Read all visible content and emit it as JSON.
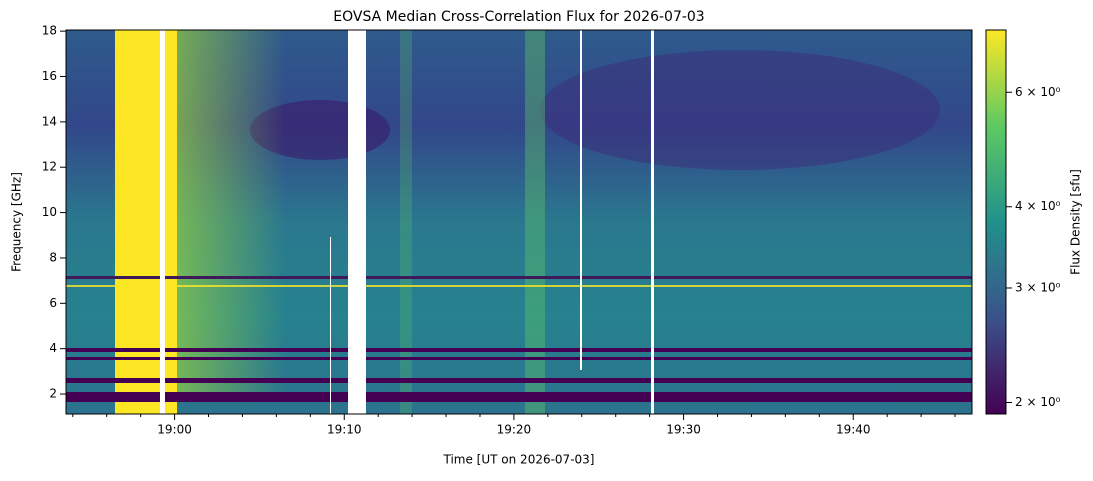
{
  "chart_data": {
    "type": "spectrogram",
    "title": "EOVSA Median Cross-Correlation Flux for 2026-07-03",
    "xlabel": "Time [UT on 2026-07-03]",
    "ylabel": "Frequency [GHz]",
    "xlim": [
      1133.6,
      1187.0
    ],
    "xticks": [
      {
        "value": 1140,
        "label": "19:00"
      },
      {
        "value": 1150,
        "label": "19:10"
      },
      {
        "value": 1160,
        "label": "19:20"
      },
      {
        "value": 1170,
        "label": "19:30"
      },
      {
        "value": 1180,
        "label": "19:40"
      }
    ],
    "xminorticks": [
      1134,
      1136,
      1138,
      1142,
      1144,
      1146,
      1148,
      1152,
      1154,
      1156,
      1158,
      1162,
      1164,
      1166,
      1168,
      1172,
      1174,
      1176,
      1178,
      1182,
      1184,
      1186
    ],
    "ylim": [
      1.12,
      18.05
    ],
    "yticks": [
      2,
      4,
      6,
      8,
      10,
      12,
      14,
      16,
      18
    ],
    "colorbar": {
      "label": "Flux Density [sfu]",
      "log": true,
      "lim": [
        1.92,
        7.48
      ],
      "ticks": [
        {
          "value": 2,
          "label": "2 × 10⁰"
        },
        {
          "value": 3,
          "label": "3 × 10⁰"
        },
        {
          "value": 4,
          "label": "4 × 10⁰"
        },
        {
          "value": 6,
          "label": "6 × 10⁰"
        }
      ]
    }
  }
}
